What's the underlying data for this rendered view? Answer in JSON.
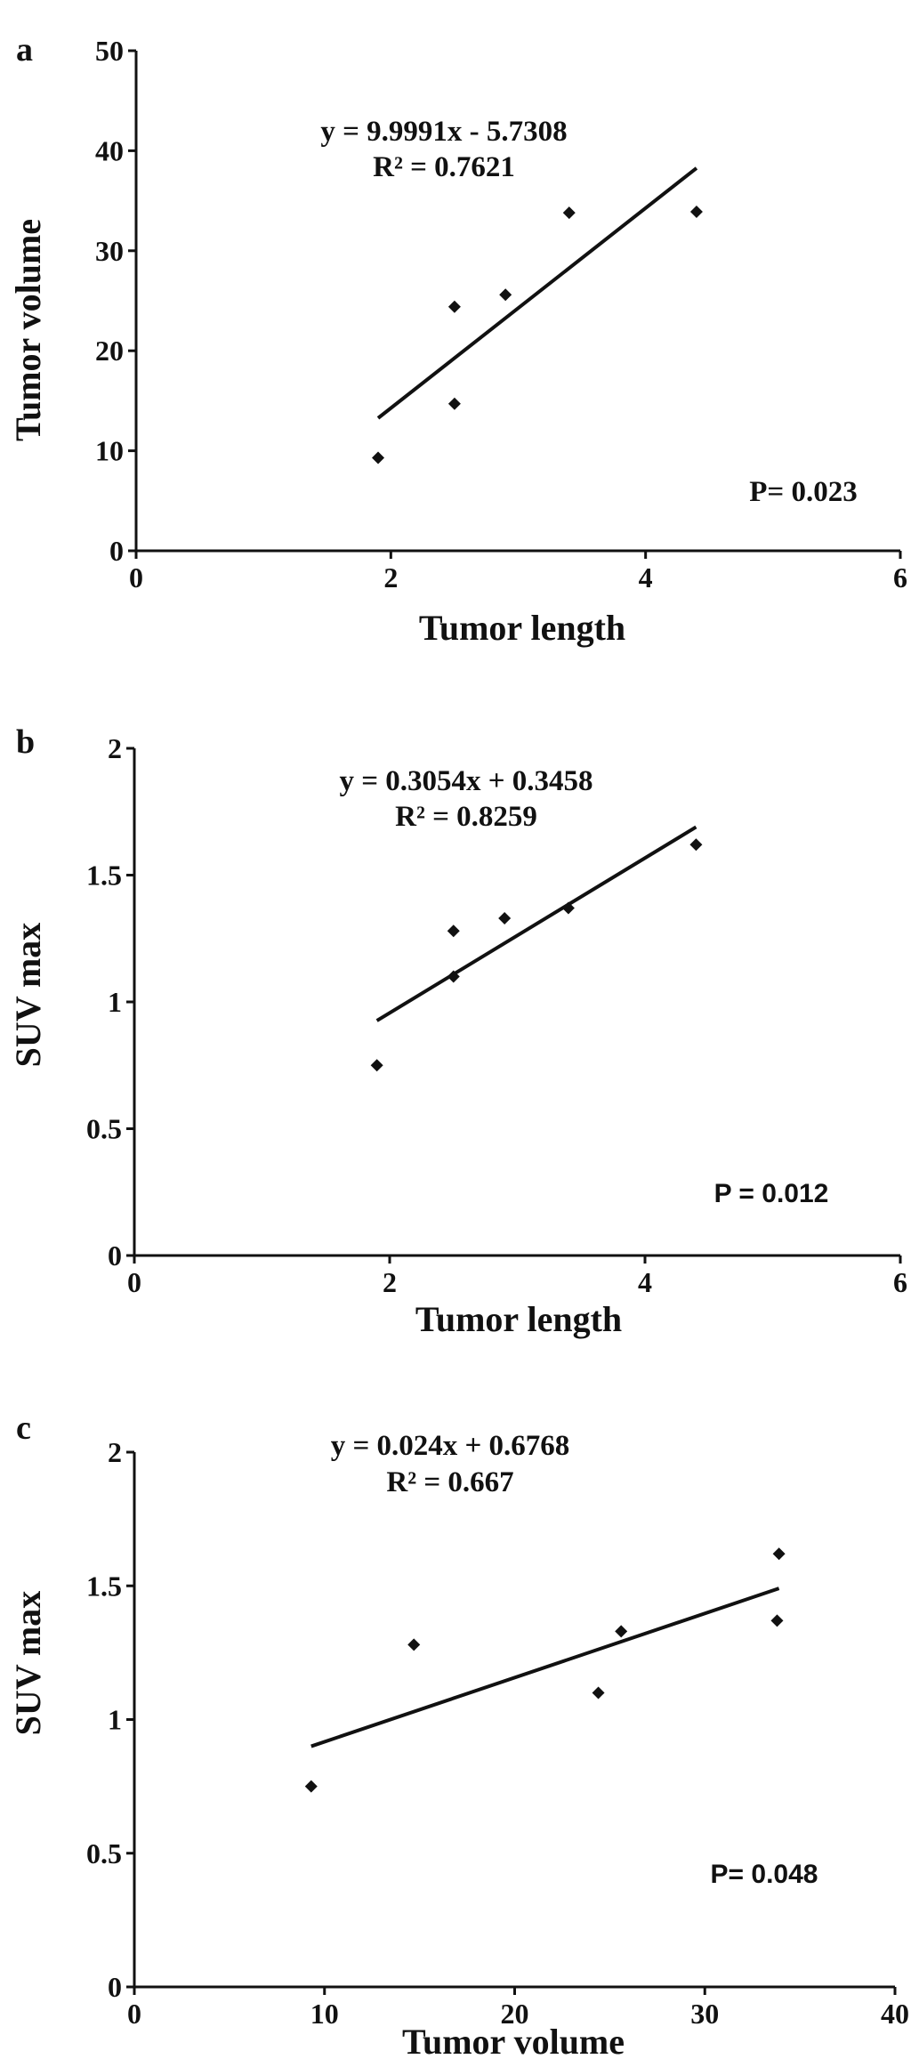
{
  "chart_data": [
    {
      "panel": "a",
      "type": "scatter",
      "xlabel": "Tumor length",
      "ylabel": "Tumor volume",
      "xlim": [
        0,
        6
      ],
      "ylim": [
        0,
        50
      ],
      "xticks": [
        0,
        2,
        4,
        6
      ],
      "yticks": [
        0,
        10,
        20,
        30,
        40,
        50
      ],
      "xticklabels": [
        "0",
        "2",
        "4",
        "6"
      ],
      "yticklabels": [
        "0",
        "10",
        "20",
        "30",
        "40",
        "50"
      ],
      "points": [
        {
          "x": 1.9,
          "y": 9.3
        },
        {
          "x": 2.5,
          "y": 24.4
        },
        {
          "x": 2.5,
          "y": 14.7
        },
        {
          "x": 2.9,
          "y": 25.6
        },
        {
          "x": 3.4,
          "y": 33.8
        },
        {
          "x": 4.4,
          "y": 33.9
        }
      ],
      "trendline": {
        "slope": 9.9991,
        "intercept": -5.7308,
        "x_range": [
          1.9,
          4.4
        ]
      },
      "equation": "y = 9.9991x - 5.7308",
      "r_squared": "R² = 0.7621",
      "p_value": "P= 0.023",
      "marker_color": "#111111"
    },
    {
      "panel": "b",
      "type": "scatter",
      "xlabel": "Tumor length",
      "ylabel": "SUV max",
      "xlim": [
        0,
        6
      ],
      "ylim": [
        0,
        2
      ],
      "xticks": [
        0,
        2,
        4,
        6
      ],
      "yticks": [
        0,
        0.5,
        1,
        1.5,
        2
      ],
      "xticklabels": [
        "0",
        "2",
        "4",
        "6"
      ],
      "yticklabels": [
        "0",
        "0.5",
        "1",
        "1.5",
        "2"
      ],
      "points": [
        {
          "x": 1.9,
          "y": 0.75
        },
        {
          "x": 2.5,
          "y": 1.28
        },
        {
          "x": 2.5,
          "y": 1.1
        },
        {
          "x": 2.9,
          "y": 1.33
        },
        {
          "x": 3.4,
          "y": 1.37
        },
        {
          "x": 4.4,
          "y": 1.62
        }
      ],
      "trendline": {
        "slope": 0.3054,
        "intercept": 0.3458,
        "x_range": [
          1.9,
          4.4
        ]
      },
      "equation": "y = 0.3054x + 0.3458",
      "r_squared": "R² = 0.8259",
      "p_value": "P = 0.012",
      "marker_color": "#111111"
    },
    {
      "panel": "c",
      "type": "scatter",
      "xlabel": "Tumor volume",
      "ylabel": "SUV max",
      "xlim": [
        0,
        40
      ],
      "ylim": [
        0,
        2
      ],
      "xticks": [
        0,
        10,
        20,
        30,
        40
      ],
      "yticks": [
        0,
        0.5,
        1,
        1.5,
        2
      ],
      "xticklabels": [
        "0",
        "10",
        "20",
        "30",
        "40"
      ],
      "yticklabels": [
        "0",
        "0.5",
        "1",
        "1.5",
        "2"
      ],
      "points": [
        {
          "x": 9.3,
          "y": 0.75
        },
        {
          "x": 14.7,
          "y": 1.28
        },
        {
          "x": 24.4,
          "y": 1.1
        },
        {
          "x": 25.6,
          "y": 1.33
        },
        {
          "x": 33.8,
          "y": 1.37
        },
        {
          "x": 33.9,
          "y": 1.62
        }
      ],
      "trendline": {
        "slope": 0.024,
        "intercept": 0.6768,
        "x_range": [
          9.3,
          33.9
        ]
      },
      "equation": "y = 0.024x + 0.6768",
      "r_squared": "R² = 0.667",
      "p_value": "P= 0.048",
      "marker_color": "#111111"
    }
  ]
}
